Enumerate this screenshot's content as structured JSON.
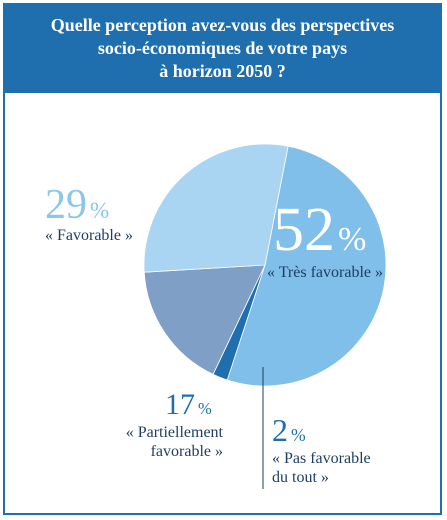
{
  "header": {
    "title_lines": [
      "Quelle perception avez-vous des perspectives",
      "socio-économiques de votre pays",
      "à horizon 2050 ?"
    ]
  },
  "chart_data": {
    "type": "pie",
    "title": "Quelle perception avez-vous des perspectives socio-économiques de votre pays à horizon 2050 ?",
    "slices": [
      {
        "value_label": "52",
        "percent_symbol": "%",
        "label": "« Très favorable »",
        "value": 52,
        "color": "#7fbfea"
      },
      {
        "value_label": "2",
        "percent_symbol": "%",
        "label": "« Pas favorable du tout »",
        "value": 2,
        "color": "#1f6fae"
      },
      {
        "value_label": "17",
        "percent_symbol": "%",
        "label": "« Partiellement favorable »",
        "value": 17,
        "color": "#7f9fc7"
      },
      {
        "value_label": "29",
        "percent_symbol": "%",
        "label": "« Favorable »",
        "value": 29,
        "color": "#a9d4f2"
      }
    ],
    "labels": {
      "tres_favorable": {
        "pct": "52",
        "sym": "%",
        "text": "« Très favorable »"
      },
      "favorable": {
        "pct": "29",
        "sym": "%",
        "text": "« Favorable »"
      },
      "partiellement": {
        "pct": "17",
        "sym": "%",
        "line1": "« Partiellement",
        "line2": "favorable »"
      },
      "pas_favorable": {
        "pct": "2",
        "sym": "%",
        "line1": "« Pas favorable",
        "line2": "du tout »"
      }
    }
  }
}
